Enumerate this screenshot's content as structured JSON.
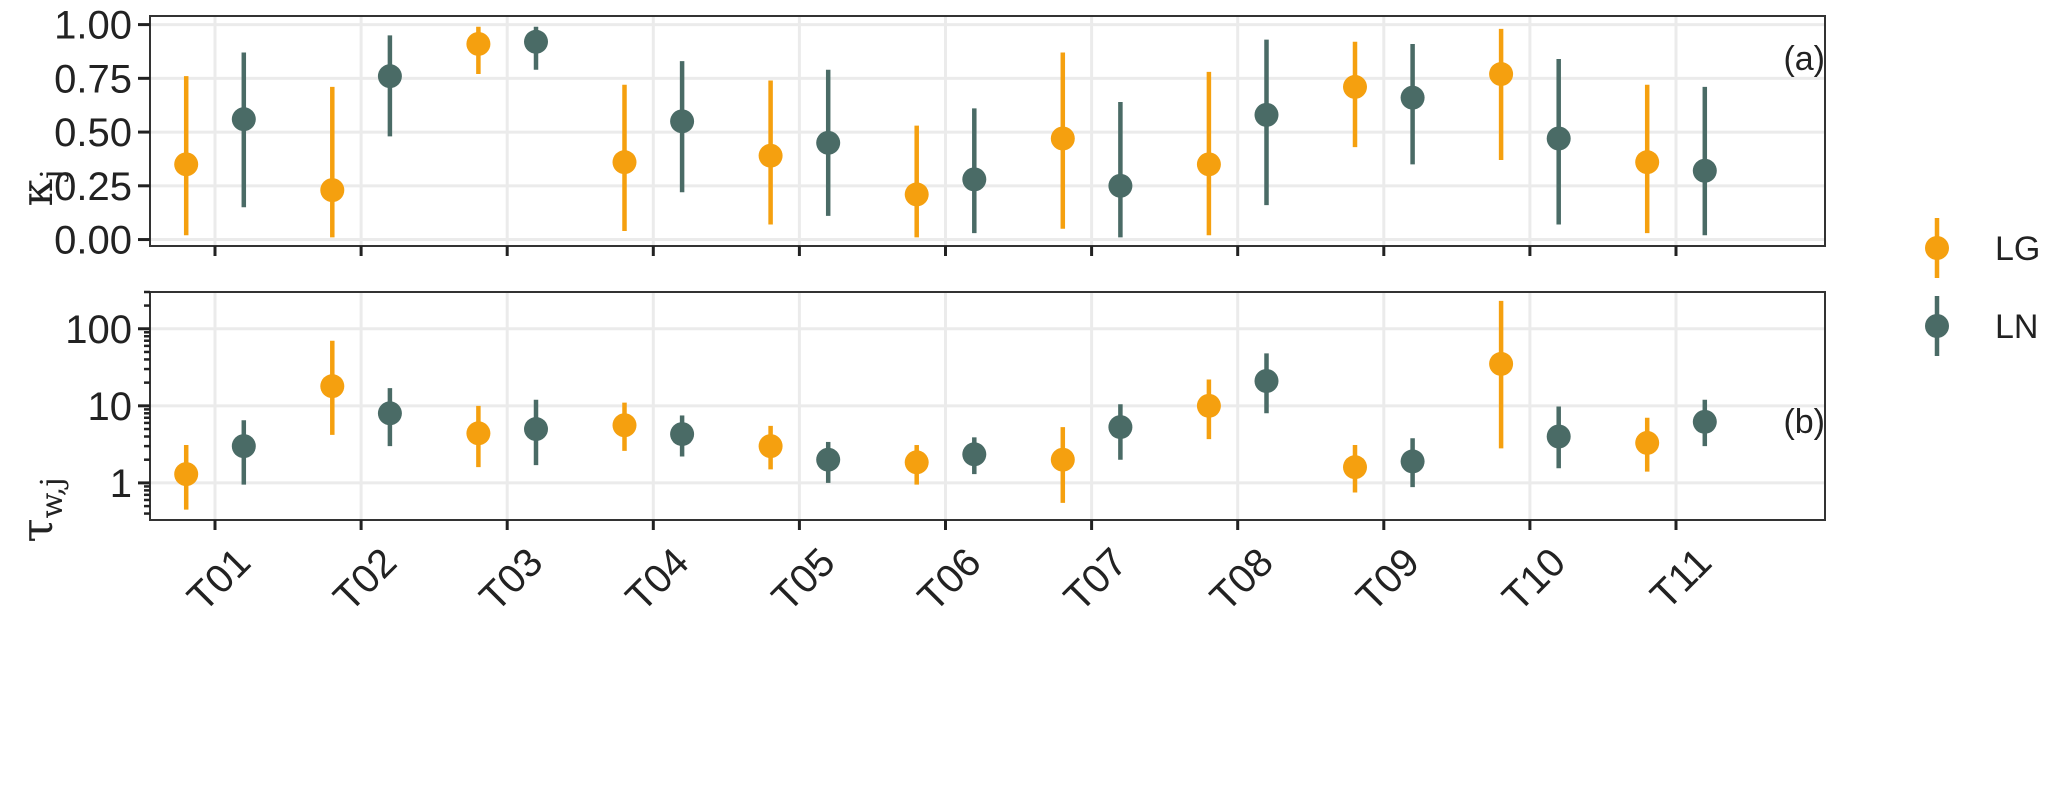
{
  "chart_data": {
    "type": "scatter",
    "categories": [
      "T01",
      "T02",
      "T03",
      "T04",
      "T05",
      "T06",
      "T07",
      "T08",
      "T09",
      "T10",
      "T11"
    ],
    "legend": {
      "position": "right",
      "entries": [
        {
          "name": "LG",
          "color": "#F5A00F"
        },
        {
          "name": "LN",
          "color": "#4A6B66"
        }
      ]
    },
    "panels": [
      {
        "tag": "(a)",
        "ylabel_main": "κ",
        "ylabel_sub": "j",
        "scale": "linear",
        "ylim": [
          -0.03,
          1.04
        ],
        "yticks": [
          0,
          0.25,
          0.5,
          0.75,
          1.0
        ],
        "ytick_labels": [
          "0.00",
          "0.25",
          "0.50",
          "0.75",
          "1.00"
        ],
        "grid": true,
        "series": [
          {
            "name": "LG",
            "estimate": [
              0.35,
              0.23,
              0.91,
              0.36,
              0.39,
              0.21,
              0.47,
              0.35,
              0.71,
              0.77,
              0.36
            ],
            "lower": [
              0.02,
              0.01,
              0.77,
              0.04,
              0.07,
              0.01,
              0.05,
              0.02,
              0.43,
              0.37,
              0.03
            ],
            "upper": [
              0.76,
              0.71,
              0.99,
              0.72,
              0.74,
              0.53,
              0.87,
              0.78,
              0.92,
              0.98,
              0.72
            ]
          },
          {
            "name": "LN",
            "estimate": [
              0.56,
              0.76,
              0.92,
              0.55,
              0.45,
              0.28,
              0.25,
              0.58,
              0.66,
              0.47,
              0.32
            ],
            "lower": [
              0.15,
              0.48,
              0.79,
              0.22,
              0.11,
              0.03,
              0.01,
              0.16,
              0.35,
              0.07,
              0.02
            ],
            "upper": [
              0.87,
              0.95,
              0.99,
              0.83,
              0.79,
              0.61,
              0.64,
              0.93,
              0.91,
              0.84,
              0.71
            ]
          }
        ]
      },
      {
        "tag": "(b)",
        "ylabel_main": "τ",
        "ylabel_sub": "w,j",
        "scale": "log",
        "ylim": [
          0.33,
          300
        ],
        "yticks": [
          1,
          10,
          100
        ],
        "ytick_labels": [
          "1",
          "10",
          "100"
        ],
        "grid": true,
        "series": [
          {
            "name": "LG",
            "estimate": [
              1.3,
              18,
              4.4,
              5.6,
              3.0,
              1.85,
              2.0,
              10,
              1.6,
              35,
              3.3
            ],
            "lower": [
              0.45,
              4.2,
              1.6,
              2.6,
              1.5,
              0.95,
              0.55,
              3.7,
              0.75,
              2.8,
              1.4
            ],
            "upper": [
              3.1,
              70,
              10,
              11,
              5.5,
              3.1,
              5.3,
              22,
              3.1,
              230,
              7.0
            ]
          },
          {
            "name": "LN",
            "estimate": [
              3.0,
              8.0,
              5.0,
              4.3,
              2.0,
              2.35,
              5.3,
              21,
              1.9,
              4.0,
              6.2
            ],
            "lower": [
              0.95,
              3.0,
              1.7,
              2.2,
              1.0,
              1.3,
              2.0,
              8.0,
              0.88,
              1.55,
              3.0
            ],
            "upper": [
              6.5,
              17,
              12,
              7.5,
              3.4,
              3.9,
              10.5,
              48,
              3.8,
              9.8,
              12
            ]
          }
        ]
      }
    ]
  }
}
